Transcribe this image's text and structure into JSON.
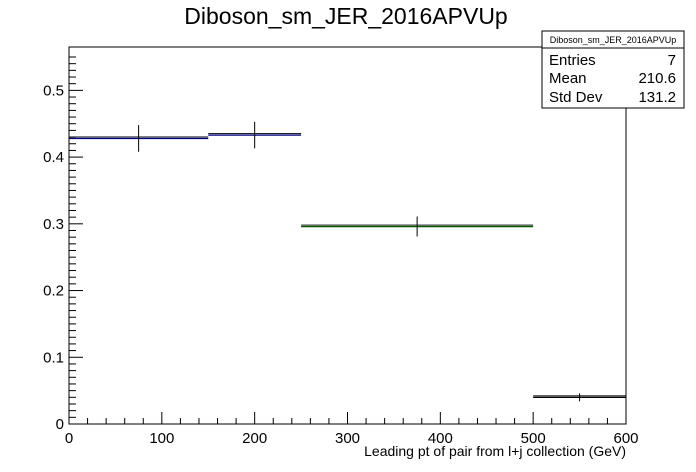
{
  "chart_data": {
    "type": "histogram",
    "title": "Diboson_sm_JER_2016APVUp",
    "xlabel": "Leading pt of pair from l+j collection (GeV)",
    "ylabel": "",
    "xlim": [
      0,
      600
    ],
    "ylim": [
      0,
      0.565
    ],
    "x_ticks": [
      0,
      100,
      200,
      300,
      400,
      500,
      600
    ],
    "y_ticks": [
      0,
      0.1,
      0.2,
      0.3,
      0.4,
      0.5
    ],
    "x_tick_labels": [
      "0",
      "100",
      "200",
      "300",
      "400",
      "500",
      "600"
    ],
    "y_tick_labels": [
      "0",
      "0.1",
      "0.2",
      "0.3",
      "0.4",
      "0.5"
    ],
    "grid": false,
    "bins": [
      {
        "x_low": 0,
        "x_high": 150,
        "center": 75,
        "value": 0.428,
        "error": 0.02,
        "color": "#00007f"
      },
      {
        "x_low": 150,
        "x_high": 250,
        "center": 200,
        "value": 0.433,
        "error": 0.02,
        "color": "#00007f"
      },
      {
        "x_low": 250,
        "x_high": 500,
        "center": 375,
        "value": 0.296,
        "error": 0.015,
        "color": "#005500"
      },
      {
        "x_low": 500,
        "x_high": 600,
        "center": 550,
        "value": 0.04,
        "error": 0.006,
        "color": "#000000"
      }
    ],
    "stats_box": {
      "title": "Diboson_sm_JER_2016APVUp",
      "rows": [
        {
          "label": "Entries",
          "value": "7"
        },
        {
          "label": "Mean",
          "value": "210.6"
        },
        {
          "label": "Std Dev",
          "value": "131.2"
        }
      ],
      "placement": "top-right"
    }
  }
}
